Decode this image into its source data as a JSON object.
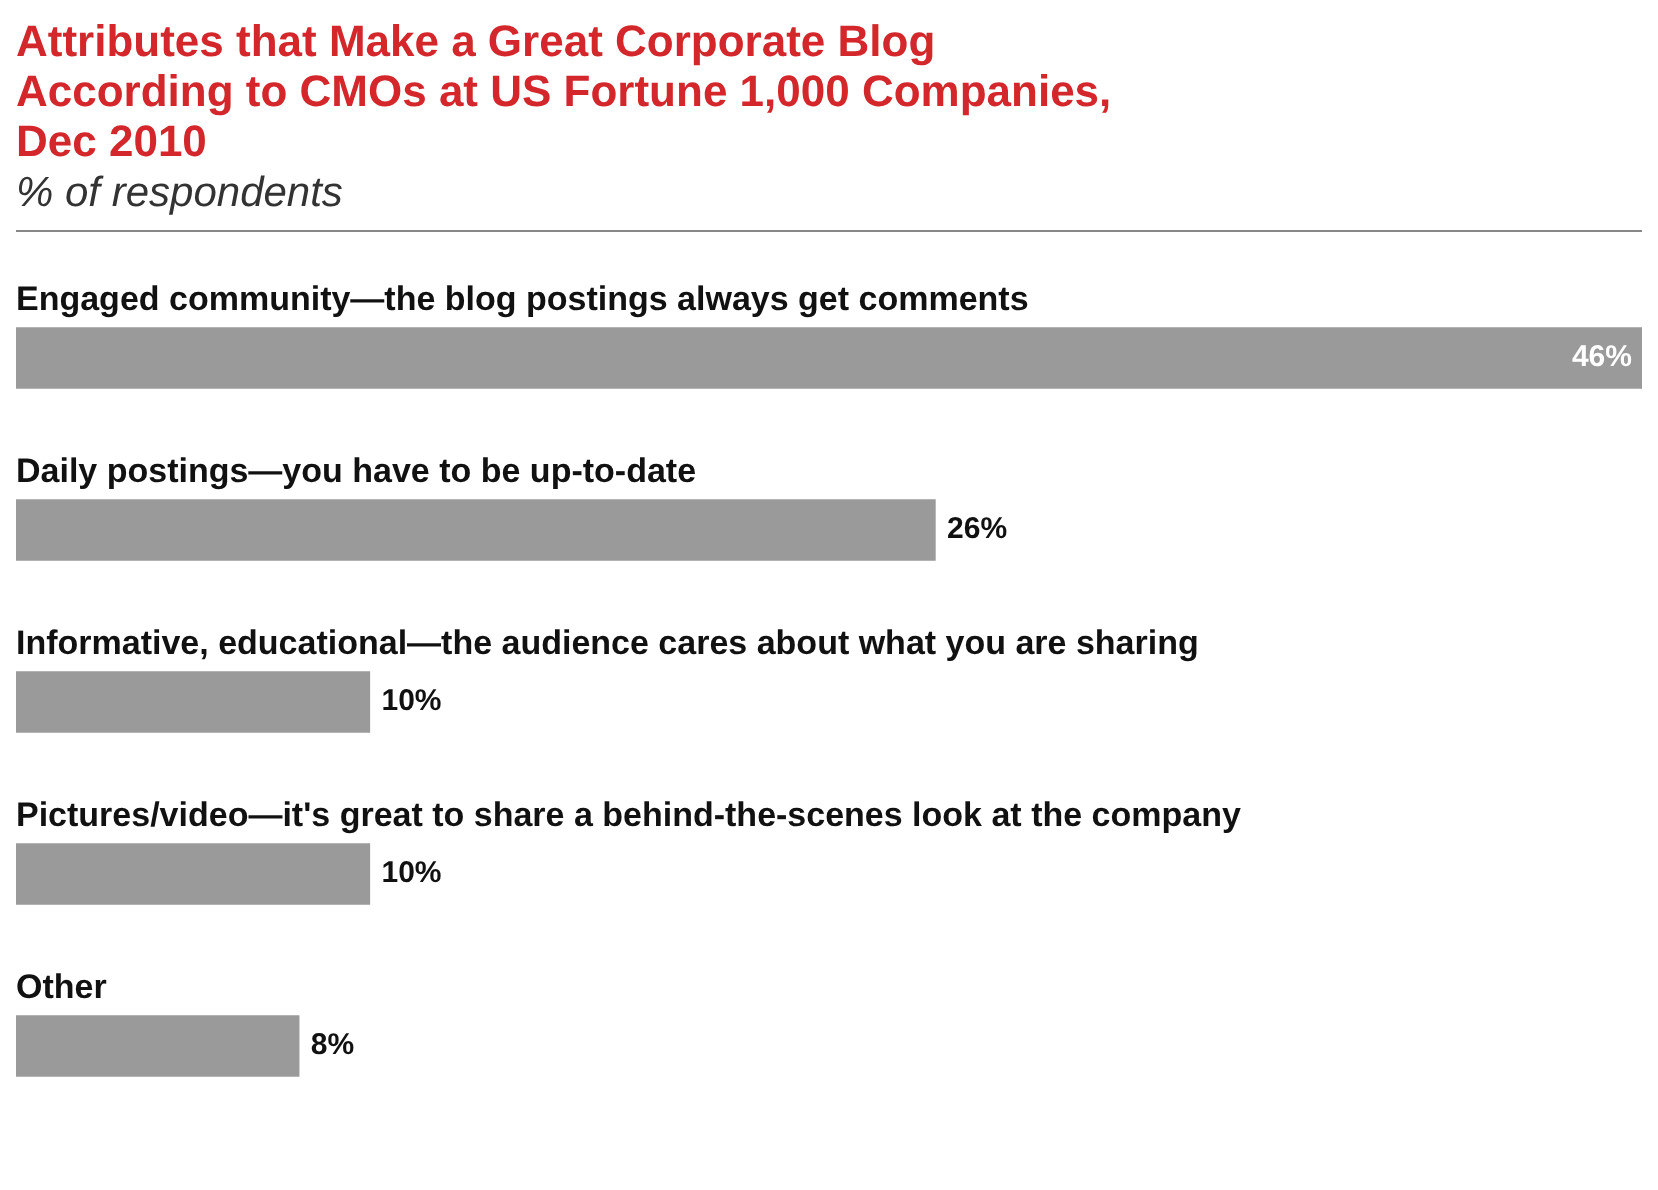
{
  "chart_data": {
    "type": "bar",
    "orientation": "horizontal",
    "title": "Attributes that Make a Great Corporate Blog According to CMOs at US Fortune 1,000 Companies, Dec 2010",
    "subtitle": "% of respondents",
    "categories": [
      "Engaged community—the blog postings always get comments",
      "Daily postings—you have to be up-to-date",
      "Informative, educational—the audience cares about what you are sharing",
      "Pictures/video—it's great to share a behind-the-scenes look at the company",
      "Other"
    ],
    "values": [
      46,
      26,
      10,
      10,
      8
    ],
    "value_labels": [
      "46%",
      "26%",
      "10%",
      "10%",
      "8%"
    ],
    "color": "#9a9a9a",
    "legend": false
  }
}
